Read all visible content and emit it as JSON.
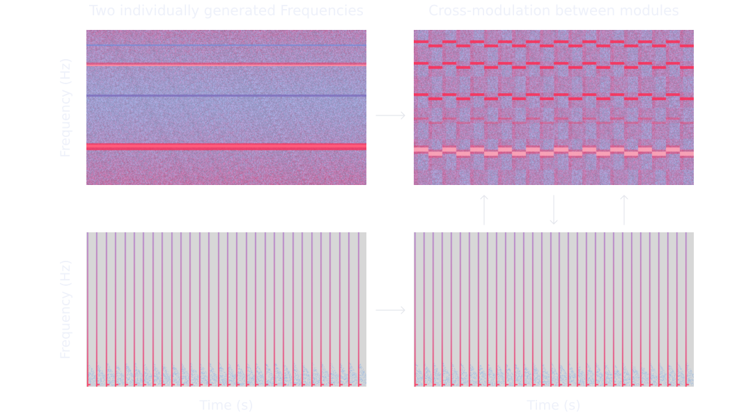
{
  "titles": {
    "left": "Two individually generated Frequencies",
    "right": "Cross-modulation between modules"
  },
  "axes": {
    "y_label": "Frequency (Hz)",
    "x_label": "Time (s)"
  },
  "colors": {
    "text": "#eef1fa",
    "arrow": "#e4e6ec",
    "spectrum_blue": "#8fb6e6",
    "spectrum_pink": "#d9588f",
    "spectrum_peak": "#ff2a52",
    "pulse_background": "#d7d7d7"
  },
  "panels": [
    {
      "id": "continuous-tones",
      "kind": "continuous_spectrogram",
      "bands": 4
    },
    {
      "id": "cross-modulated-tones",
      "kind": "modulated_spectrogram",
      "bands": 5,
      "repeat_cells": 20
    },
    {
      "id": "pulse-train",
      "kind": "pulse_spectrogram",
      "pulses": 30
    },
    {
      "id": "cross-modulated-pulses",
      "kind": "pulse_spectrogram",
      "pulses": 31
    }
  ],
  "arrows": [
    {
      "name": "arrow-top-right",
      "direction": "right"
    },
    {
      "name": "arrow-bottom-right",
      "direction": "right"
    },
    {
      "name": "arrow-up-left",
      "direction": "up"
    },
    {
      "name": "arrow-down-middle",
      "direction": "down"
    },
    {
      "name": "arrow-up-right",
      "direction": "up"
    }
  ]
}
